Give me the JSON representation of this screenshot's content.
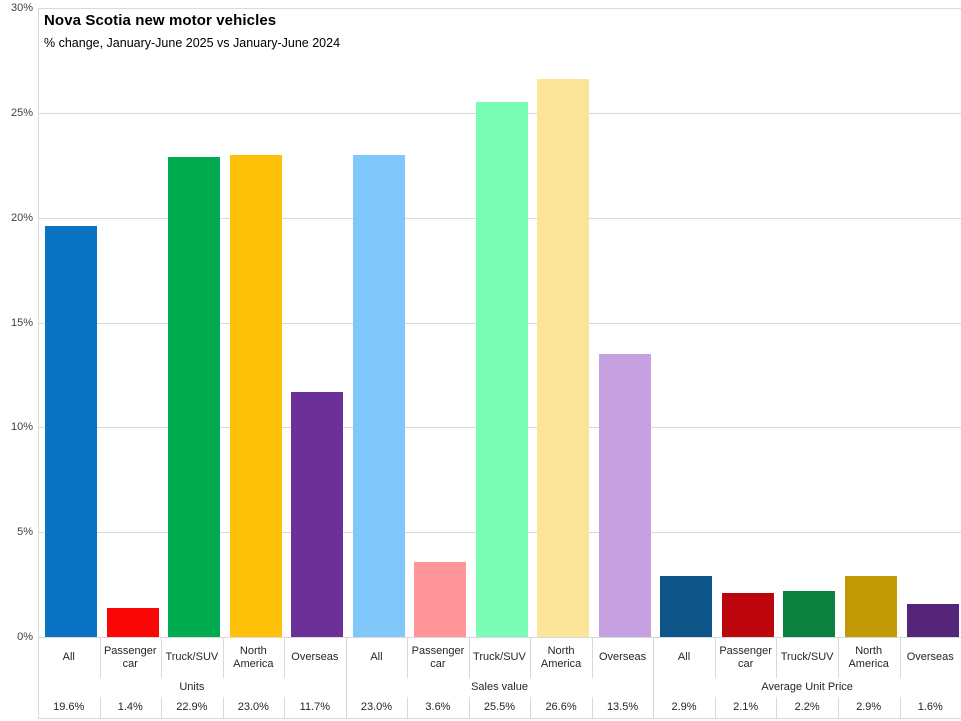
{
  "chart_data": {
    "type": "bar",
    "title": "Nova Scotia new motor vehicles",
    "subtitle": "% change, January-June 2025 vs January-June 2024",
    "xlabel": "",
    "ylabel": "",
    "ylim": [
      0,
      30
    ],
    "ytick_step": 5,
    "ytick_labels": [
      "0%",
      "5%",
      "10%",
      "15%",
      "20%",
      "25%",
      "30%"
    ],
    "grid": "horizontal",
    "legend": "none",
    "axis_categories": [
      "All",
      "Passenger car",
      "Truck/SUV",
      "North America",
      "Overseas"
    ],
    "groups": [
      {
        "label": "Units",
        "bars": [
          {
            "category": "All",
            "value": 19.6,
            "display": "19.6%",
            "color": "#0973C4"
          },
          {
            "category": "Passenger car",
            "value": 1.4,
            "display": "1.4%",
            "color": "#FA0607"
          },
          {
            "category": "Truck/SUV",
            "value": 22.9,
            "display": "22.9%",
            "color": "#00AB50"
          },
          {
            "category": "North America",
            "value": 23.0,
            "display": "23.0%",
            "color": "#FFC107"
          },
          {
            "category": "Overseas",
            "value": 11.7,
            "display": "11.7%",
            "color": "#6C3199"
          }
        ]
      },
      {
        "label": "Sales value",
        "bars": [
          {
            "category": "All",
            "value": 23.0,
            "display": "23.0%",
            "color": "#80C7FB"
          },
          {
            "category": "Passenger car",
            "value": 3.6,
            "display": "3.6%",
            "color": "#FF9598"
          },
          {
            "category": "Truck/SUV",
            "value": 25.5,
            "display": "25.5%",
            "color": "#78FCB6"
          },
          {
            "category": "North America",
            "value": 26.6,
            "display": "26.6%",
            "color": "#FCE598"
          },
          {
            "category": "Overseas",
            "value": 13.5,
            "display": "13.5%",
            "color": "#C5A1E1"
          }
        ]
      },
      {
        "label": "Average Unit Price",
        "bars": [
          {
            "category": "All",
            "value": 2.9,
            "display": "2.9%",
            "color": "#0D5588"
          },
          {
            "category": "Passenger car",
            "value": 2.1,
            "display": "2.1%",
            "color": "#BC060C"
          },
          {
            "category": "Truck/SUV",
            "value": 2.2,
            "display": "2.2%",
            "color": "#0C813F"
          },
          {
            "category": "North America",
            "value": 2.9,
            "display": "2.9%",
            "color": "#C19905"
          },
          {
            "category": "Overseas",
            "value": 1.6,
            "display": "1.6%",
            "color": "#552579"
          }
        ]
      }
    ],
    "colors": {
      "background": "#FFFFFF",
      "gridline": "#D9D9D9",
      "axis_text": "#404040",
      "table_text": "#262626",
      "title_text": "#000000"
    }
  }
}
